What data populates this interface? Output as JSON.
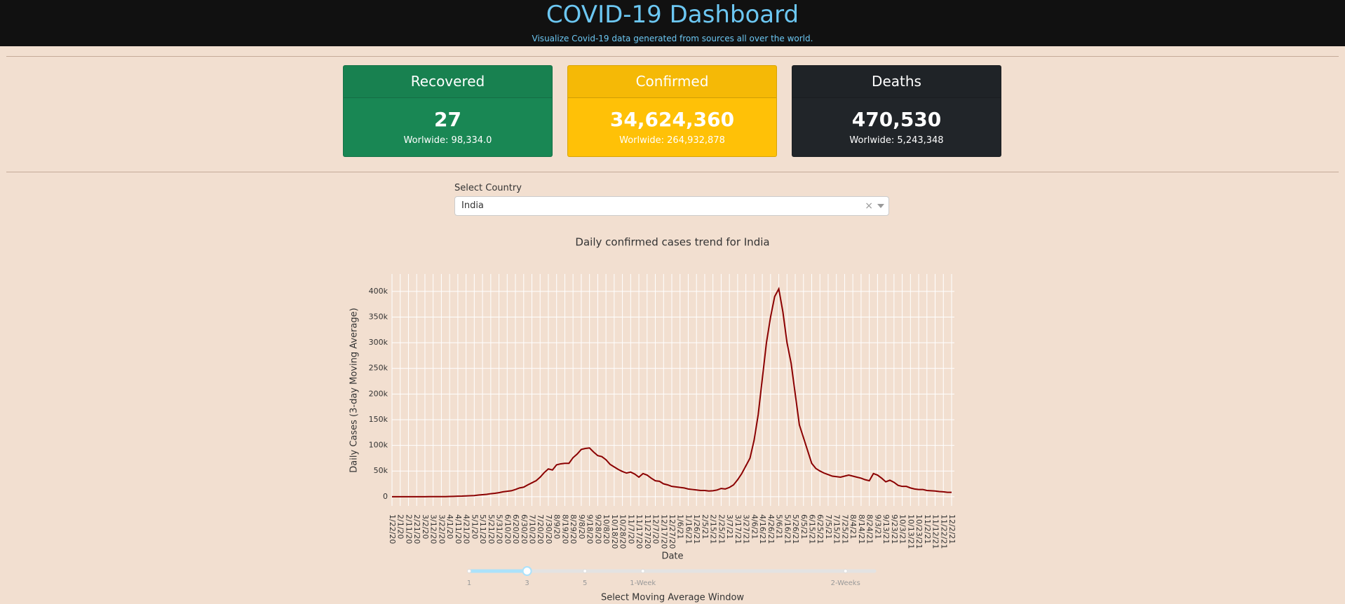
{
  "header": {
    "title": "COVID-19 Dashboard",
    "subtitle": "Visualize Covid-19 data generated from sources all over the world."
  },
  "cards": [
    {
      "title": "Recovered",
      "value": "27",
      "worldwide": "Worlwide: 98,334.0"
    },
    {
      "title": "Confirmed",
      "value": "34,624,360",
      "worldwide": "Worlwide: 264,932,878"
    },
    {
      "title": "Deaths",
      "value": "470,530",
      "worldwide": "Worlwide: 5,243,348"
    }
  ],
  "country_select": {
    "label": "Select Country",
    "value": "India"
  },
  "chart_data": {
    "type": "line",
    "title": "Daily confirmed cases trend for India",
    "x_label": "Date",
    "y_label": "Daily Cases (3-day Moving Average)",
    "x": [
      "1/22/20",
      null,
      "2/1/20",
      null,
      "2/11/20",
      null,
      "2/21/20",
      null,
      "3/2/20",
      null,
      "3/12/20",
      null,
      "3/22/20",
      null,
      "4/1/20",
      null,
      "4/11/20",
      null,
      "4/21/20",
      null,
      "5/1/20",
      null,
      "5/11/20",
      null,
      "5/21/20",
      null,
      "5/31/20",
      null,
      "6/10/20",
      null,
      "6/20/20",
      null,
      "6/30/20",
      null,
      "7/10/20",
      null,
      "7/20/20",
      null,
      "7/30/20",
      null,
      "8/9/20",
      null,
      "8/19/20",
      null,
      "8/29/20",
      null,
      "9/8/20",
      null,
      "9/18/20",
      null,
      "9/28/20",
      null,
      "10/8/20",
      null,
      "10/18/20",
      null,
      "10/28/20",
      null,
      "11/7/20",
      null,
      "11/17/20",
      null,
      "11/27/20",
      null,
      "12/7/20",
      null,
      "12/17/20",
      null,
      "12/27/20",
      null,
      "1/6/21",
      null,
      "1/16/21",
      null,
      "1/26/21",
      null,
      "2/5/21",
      null,
      "2/15/21",
      null,
      "2/25/21",
      null,
      "3/7/21",
      null,
      "3/17/21",
      null,
      "3/27/21",
      null,
      "4/6/21",
      null,
      "4/16/21",
      null,
      "4/26/21",
      null,
      "5/6/21",
      null,
      "5/16/21",
      null,
      "5/26/21",
      null,
      "6/5/21",
      null,
      "6/15/21",
      null,
      "6/25/21",
      null,
      "7/5/21",
      null,
      "7/15/21",
      null,
      "7/25/21",
      null,
      "8/4/21",
      null,
      "8/14/21",
      null,
      "8/24/21",
      null,
      "9/3/21",
      null,
      "9/13/21",
      null,
      "9/23/21",
      null,
      "10/3/21",
      null,
      "10/13/21",
      null,
      "10/23/21",
      null,
      "11/2/21",
      null,
      "11/12/21",
      null,
      "11/22/21",
      null,
      "12/2/21"
    ],
    "series": [
      {
        "color": "#8b0000",
        "values": [
          0,
          0,
          0,
          0,
          0,
          0,
          0,
          0,
          0,
          10,
          10,
          20,
          80,
          100,
          400,
          600,
          900,
          1100,
          1500,
          1800,
          2200,
          3200,
          3800,
          4500,
          5800,
          6600,
          7800,
          9500,
          10500,
          11500,
          14000,
          17000,
          18500,
          23000,
          27000,
          31000,
          38000,
          47000,
          54000,
          52000,
          62000,
          64000,
          65000,
          65000,
          76000,
          83000,
          92000,
          94000,
          95000,
          87000,
          80000,
          78000,
          72000,
          63000,
          58000,
          53000,
          49000,
          46000,
          48000,
          44000,
          38000,
          45000,
          42000,
          36000,
          31000,
          30000,
          25000,
          23000,
          20000,
          19000,
          18000,
          17000,
          15000,
          14000,
          13000,
          12000,
          12000,
          11000,
          11500,
          13000,
          16000,
          15000,
          18000,
          23000,
          33000,
          45000,
          60000,
          75000,
          110000,
          160000,
          230000,
          300000,
          350000,
          390000,
          405000,
          360000,
          300000,
          260000,
          200000,
          140000,
          115000,
          90000,
          65000,
          55000,
          50000,
          46000,
          43000,
          40000,
          39000,
          38000,
          40000,
          42000,
          40000,
          38000,
          36000,
          33000,
          31000,
          45000,
          42000,
          36000,
          29000,
          32000,
          28000,
          22000,
          20000,
          20000,
          17000,
          15000,
          14000,
          14000,
          12000,
          11500,
          11000,
          10000,
          9500,
          8500,
          8500
        ]
      }
    ],
    "ylim": [
      -18000,
      434000
    ],
    "yticks": [
      0,
      {
        "value": 50000,
        "label": "50k"
      },
      {
        "value": 100000,
        "label": "100k"
      },
      {
        "value": 150000,
        "label": "150k"
      },
      {
        "value": 200000,
        "label": "200k"
      },
      {
        "value": 250000,
        "label": "250k"
      },
      {
        "value": 300000,
        "label": "300k"
      },
      {
        "value": 350000,
        "label": "350k"
      },
      {
        "value": 400000,
        "label": "400k"
      }
    ],
    "grid": true
  },
  "slider": {
    "label": "Select Moving Average Window",
    "min": 1,
    "max": 15,
    "value": 3,
    "marks": [
      {
        "value": 1,
        "label": "1"
      },
      {
        "value": 3,
        "label": "3"
      },
      {
        "value": 5,
        "label": "5"
      },
      {
        "value": 7,
        "label": "1-Week"
      },
      {
        "value": 14,
        "label": "2-Weeks"
      }
    ]
  }
}
